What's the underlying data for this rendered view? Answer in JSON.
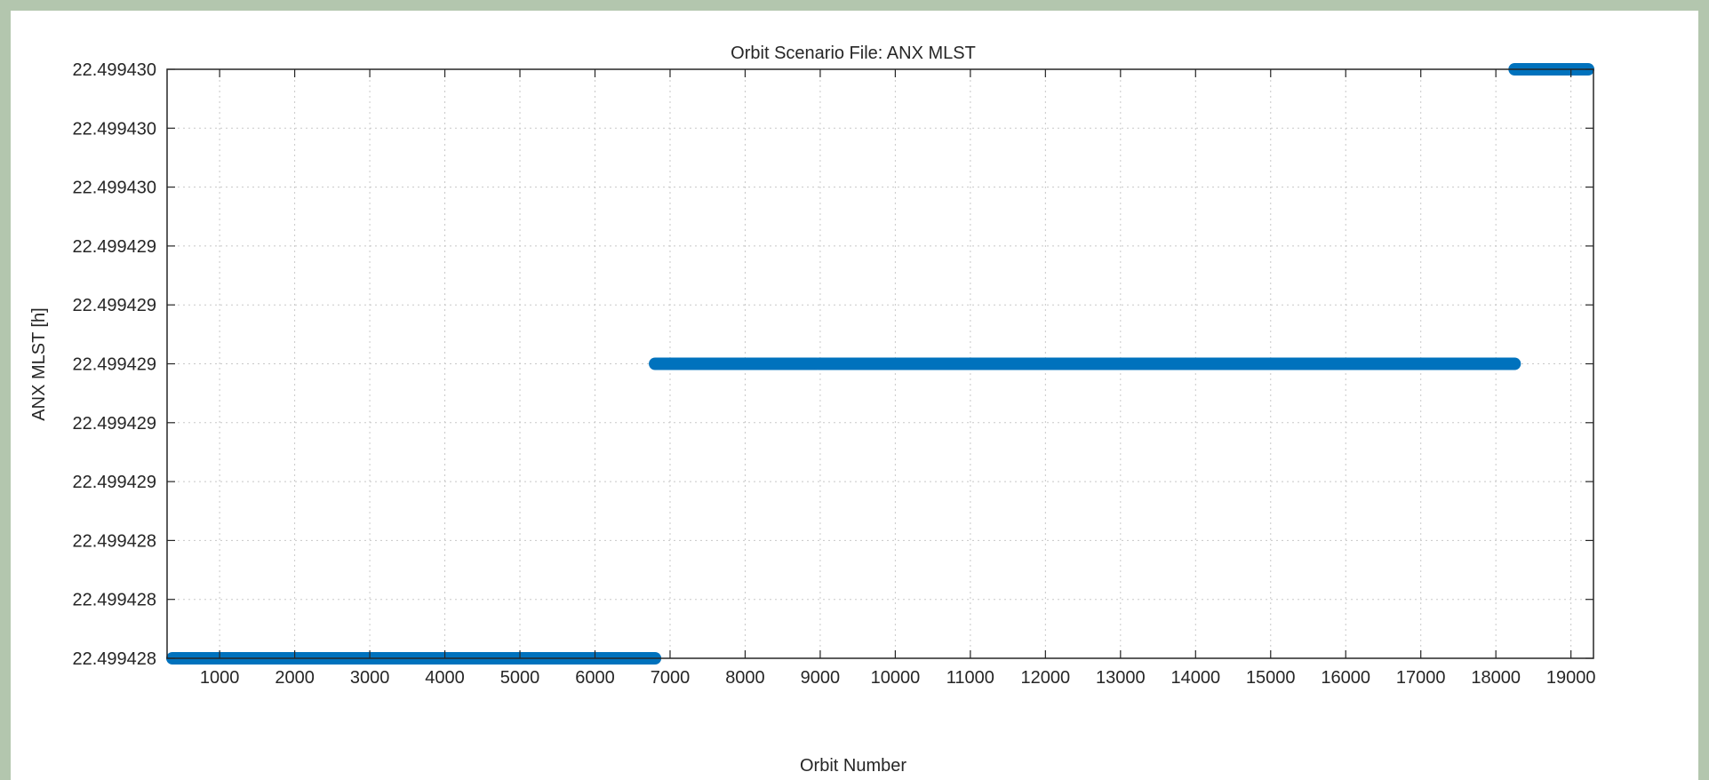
{
  "chart_data": {
    "type": "line",
    "title": "Orbit Scenario File: ANX MLST",
    "xlabel": "Orbit Number",
    "ylabel": "ANX MLST [h]",
    "xlim": [
      300,
      19300
    ],
    "ylim": [
      0,
      10
    ],
    "xticks": [
      1000,
      2000,
      3000,
      4000,
      5000,
      6000,
      7000,
      8000,
      9000,
      10000,
      11000,
      12000,
      13000,
      14000,
      15000,
      16000,
      17000,
      18000,
      19000
    ],
    "yticks": [
      {
        "value": 0,
        "label": "22.499428"
      },
      {
        "value": 1,
        "label": "22.499428"
      },
      {
        "value": 2,
        "label": "22.499428"
      },
      {
        "value": 3,
        "label": "22.499429"
      },
      {
        "value": 4,
        "label": "22.499429"
      },
      {
        "value": 5,
        "label": "22.499429"
      },
      {
        "value": 6,
        "label": "22.499429"
      },
      {
        "value": 7,
        "label": "22.499429"
      },
      {
        "value": 8,
        "label": "22.499430"
      },
      {
        "value": 9,
        "label": "22.499430"
      },
      {
        "value": 10,
        "label": "22.499430"
      }
    ],
    "grid": true,
    "series": [
      {
        "color": "#0072bd",
        "segments": [
          {
            "x": [
              300,
              6800
            ],
            "y": 0
          },
          {
            "x": [
              6800,
              8950
            ],
            "y": 5
          },
          {
            "x": [
              8980,
              18250
            ],
            "y": 5
          },
          {
            "x": [
              18250,
              19300
            ],
            "y": 10
          }
        ]
      }
    ]
  }
}
